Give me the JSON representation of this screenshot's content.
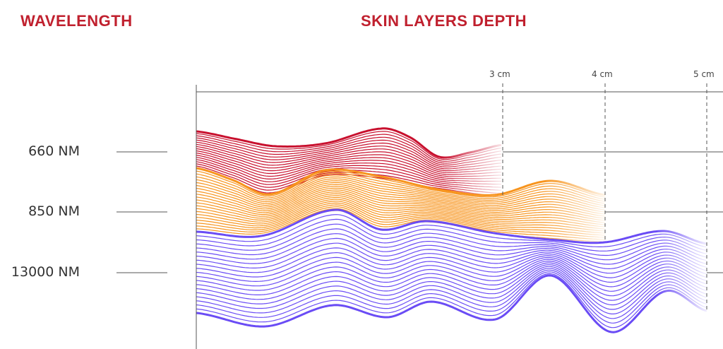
{
  "headers": {
    "wavelength": "WAVELENGTH",
    "depth": "SKIN LAYERS DEPTH"
  },
  "wavelengths": [
    {
      "label": "660 NM",
      "depth": "3 cm",
      "color": "#c8102e"
    },
    {
      "label": "850 NM",
      "depth": "4 cm",
      "color": "#f7941d"
    },
    {
      "label": "13000 NM",
      "depth": "5 cm",
      "color": "#6a4cf5"
    }
  ],
  "colors": {
    "title": "#c0202e",
    "axis": "#555555"
  }
}
